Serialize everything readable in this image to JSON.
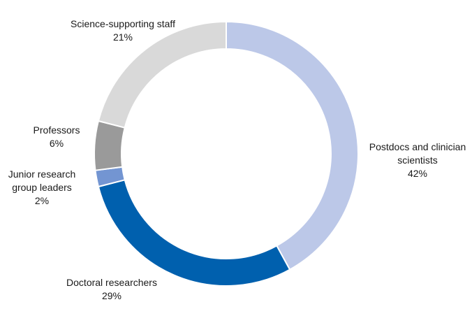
{
  "chart_data": {
    "type": "donut",
    "categories": [
      "Postdocs and clinician scientists",
      "Doctoral researchers",
      "Junior research group leaders",
      "Professors",
      "Science-supporting staff"
    ],
    "values": [
      42,
      29,
      2,
      6,
      21
    ],
    "value_labels": [
      "42%",
      "29%",
      "2%",
      "6%",
      "21%"
    ],
    "colors": [
      "#bcc8e8",
      "#0060ae",
      "#7395d2",
      "#9a9a9a",
      "#d9d9d9"
    ]
  }
}
